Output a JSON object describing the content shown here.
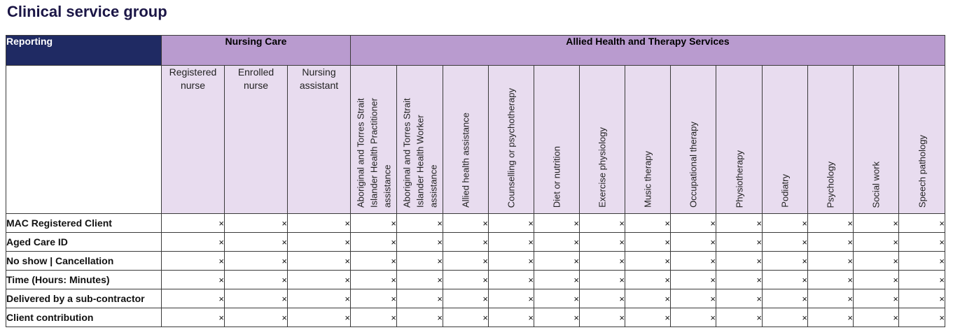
{
  "title": "Clinical service group",
  "header": {
    "reporting": "Reporting",
    "groups": [
      {
        "label": "Nursing Care",
        "span": 3
      },
      {
        "label": "Allied Health and Therapy Services",
        "span": 13
      }
    ]
  },
  "columns": [
    {
      "label": "Registered nurse",
      "vertical": false
    },
    {
      "label": "Enrolled nurse",
      "vertical": false
    },
    {
      "label": "Nursing assistant",
      "vertical": false
    },
    {
      "label": "Aboriginal and Torres Strait Islander Health Practitioner assistance",
      "vertical": true
    },
    {
      "label": "Aboriginal and Torres Strait Islander Health Worker assistance",
      "vertical": true
    },
    {
      "label": "Allied health assistance",
      "vertical": true
    },
    {
      "label": "Counselling or psychotherapy",
      "vertical": true
    },
    {
      "label": "Diet or nutrition",
      "vertical": true
    },
    {
      "label": "Exercise physiology",
      "vertical": true
    },
    {
      "label": "Music therapy",
      "vertical": true
    },
    {
      "label": "Occupational therapy",
      "vertical": true
    },
    {
      "label": "Physiotherapy",
      "vertical": true
    },
    {
      "label": "Podiatry",
      "vertical": true
    },
    {
      "label": "Psychology",
      "vertical": true
    },
    {
      "label": "Social work",
      "vertical": true
    },
    {
      "label": "Speech pathology",
      "vertical": true
    }
  ],
  "rows": [
    {
      "label": "MAC Registered Client",
      "cells": [
        "×",
        "×",
        "×",
        "×",
        "×",
        "×",
        "×",
        "×",
        "×",
        "×",
        "×",
        "×",
        "×",
        "×",
        "×",
        "×"
      ]
    },
    {
      "label": "Aged Care ID",
      "cells": [
        "×",
        "×",
        "×",
        "×",
        "×",
        "×",
        "×",
        "×",
        "×",
        "×",
        "×",
        "×",
        "×",
        "×",
        "×",
        "×"
      ]
    },
    {
      "label": "No show | Cancellation",
      "cells": [
        "×",
        "×",
        "×",
        "×",
        "×",
        "×",
        "×",
        "×",
        "×",
        "×",
        "×",
        "×",
        "×",
        "×",
        "×",
        "×"
      ]
    },
    {
      "label": "Time (Hours: Minutes)",
      "cells": [
        "×",
        "×",
        "×",
        "×",
        "×",
        "×",
        "×",
        "×",
        "×",
        "×",
        "×",
        "×",
        "×",
        "×",
        "×",
        "×"
      ]
    },
    {
      "label": "Delivered by a sub-contractor",
      "cells": [
        "×",
        "×",
        "×",
        "×",
        "×",
        "×",
        "×",
        "×",
        "×",
        "×",
        "×",
        "×",
        "×",
        "×",
        "×",
        "×"
      ]
    },
    {
      "label": "Client contribution",
      "cells": [
        "×",
        "×",
        "×",
        "×",
        "×",
        "×",
        "×",
        "×",
        "×",
        "×",
        "×",
        "×",
        "×",
        "×",
        "×",
        "×"
      ]
    }
  ],
  "colors": {
    "title": "#1b1646",
    "reporting_bg": "#1f2a63",
    "group_bg": "#b99bcf",
    "subheader_bg": "#e8dcef"
  }
}
